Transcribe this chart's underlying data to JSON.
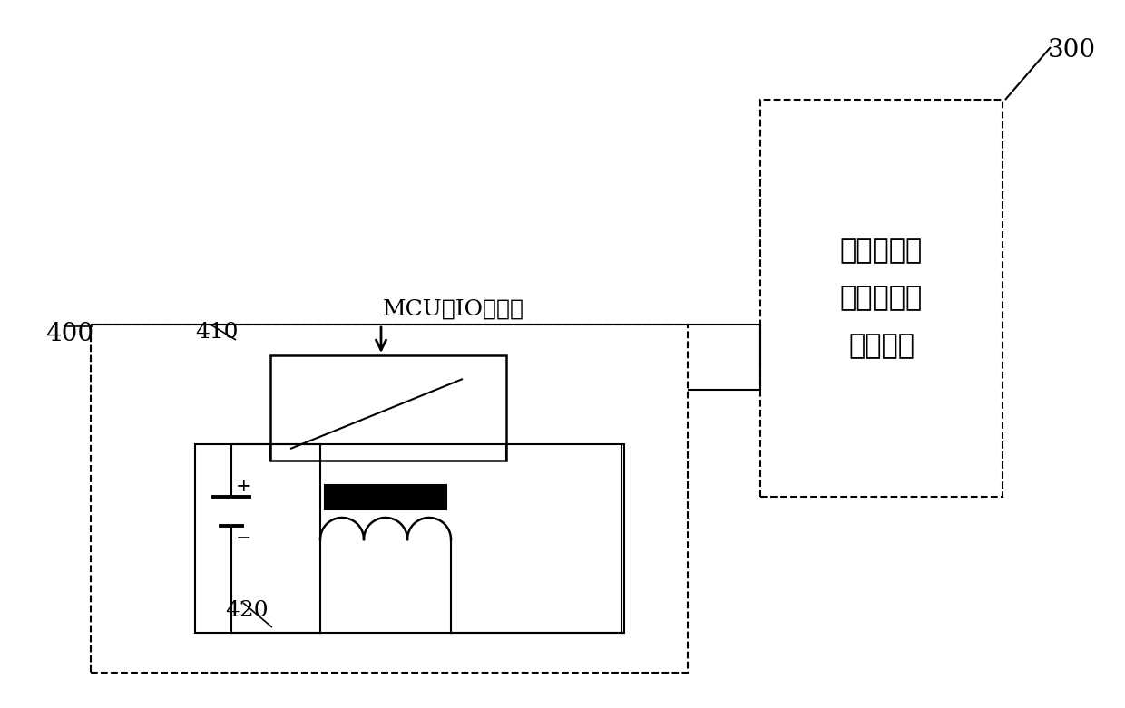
{
  "bg_color": "#ffffff",
  "line_color": "#000000",
  "label_300": "300",
  "label_400": "400",
  "label_410": "410",
  "label_420": "420",
  "label_mcu": "MCU的IO控制线",
  "label_module_line1": "采样、数字",
  "label_module_line2": "信号处理和",
  "label_module_line3": "控制模块",
  "fig_width": 12.4,
  "fig_height": 7.81
}
